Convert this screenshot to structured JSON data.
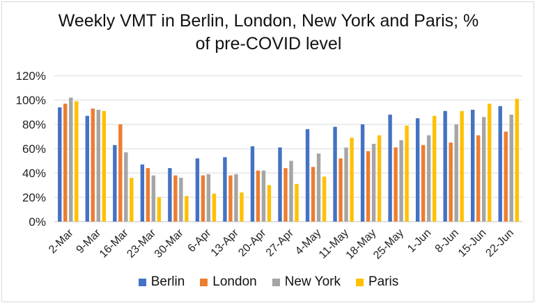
{
  "chart_data": {
    "type": "bar",
    "title_line1": "Weekly VMT in Berlin, London, New York and Paris; %",
    "title_line2": "of pre-COVID level",
    "categories": [
      "2-Mar",
      "9-Mar",
      "16-Mar",
      "23-Mar",
      "30-Mar",
      "6-Apr",
      "13-Apr",
      "20-Apr",
      "27-Apr",
      "4-May",
      "11-May",
      "18-May",
      "25-May",
      "1-Jun",
      "8-Jun",
      "15-Jun",
      "22-Jun"
    ],
    "y_ticks": [
      "0%",
      "20%",
      "40%",
      "60%",
      "80%",
      "100%",
      "120%"
    ],
    "ylim": [
      0,
      120
    ],
    "grid": true,
    "legend_position": "bottom",
    "series": [
      {
        "name": "Berlin",
        "color": "#4472C4",
        "values": [
          94,
          87,
          63,
          47,
          44,
          52,
          53,
          62,
          61,
          76,
          78,
          80,
          88,
          85,
          91,
          92,
          95
        ]
      },
      {
        "name": "London",
        "color": "#ED7D31",
        "values": [
          97,
          93,
          80,
          44,
          38,
          38,
          38,
          42,
          44,
          45,
          52,
          58,
          61,
          63,
          65,
          71,
          74
        ]
      },
      {
        "name": "New York",
        "color": "#A5A5A5",
        "values": [
          102,
          92,
          57,
          38,
          36,
          39,
          39,
          42,
          50,
          56,
          61,
          64,
          67,
          71,
          80,
          86,
          88
        ]
      },
      {
        "name": "Paris",
        "color": "#FFC000",
        "values": [
          99,
          91,
          36,
          20,
          21,
          23,
          24,
          30,
          31,
          37,
          69,
          71,
          79,
          87,
          91,
          97,
          101
        ]
      }
    ]
  }
}
